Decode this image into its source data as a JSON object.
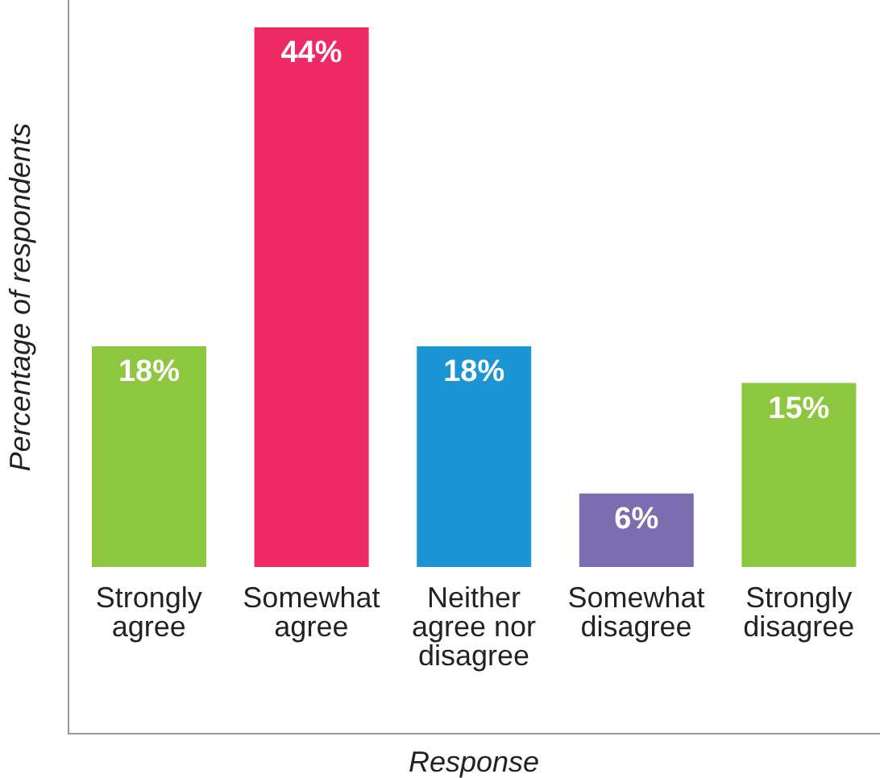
{
  "chart_data": {
    "type": "bar",
    "xlabel": "Response",
    "ylabel": "Percentage of respondents",
    "categories": [
      "Strongly agree",
      "Somewhat agree",
      "Neither agree nor disagree",
      "Somewhat disagree",
      "Strongly disagree"
    ],
    "values": [
      18,
      44,
      18,
      6,
      15
    ],
    "value_labels": [
      "18%",
      "44%",
      "18%",
      "6%",
      "15%"
    ],
    "colors": [
      "#8dc63f",
      "#ee2a65",
      "#1b95d4",
      "#7b6db0",
      "#8dc63f"
    ]
  }
}
